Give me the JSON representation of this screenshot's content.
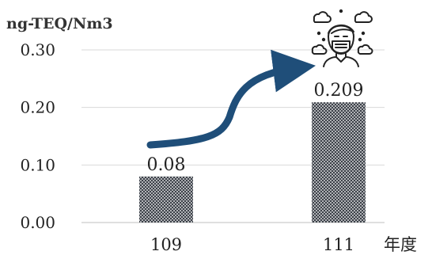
{
  "chart_data": {
    "type": "bar",
    "ylabel": "ng-TEQ/Nm3",
    "xlabel": "年度",
    "categories": [
      "109",
      "111"
    ],
    "values": [
      0.08,
      0.209
    ],
    "data_labels": [
      "0.08",
      "0.209"
    ],
    "yticks": [
      "0.00",
      "0.10",
      "0.20",
      "0.30"
    ],
    "ytick_values": [
      0,
      0.1,
      0.2,
      0.3
    ],
    "ylim": [
      0,
      0.3
    ],
    "grid": true,
    "bar_pattern": "dark crosshatch",
    "colors": {
      "bar": "#3a3f47",
      "bar_light": "#ffffff",
      "arrow": "#1f4e79",
      "grid": "#d9d9d9"
    },
    "annotations": [
      "increase-arrow",
      "person-with-mask-in-smog-icon"
    ]
  }
}
